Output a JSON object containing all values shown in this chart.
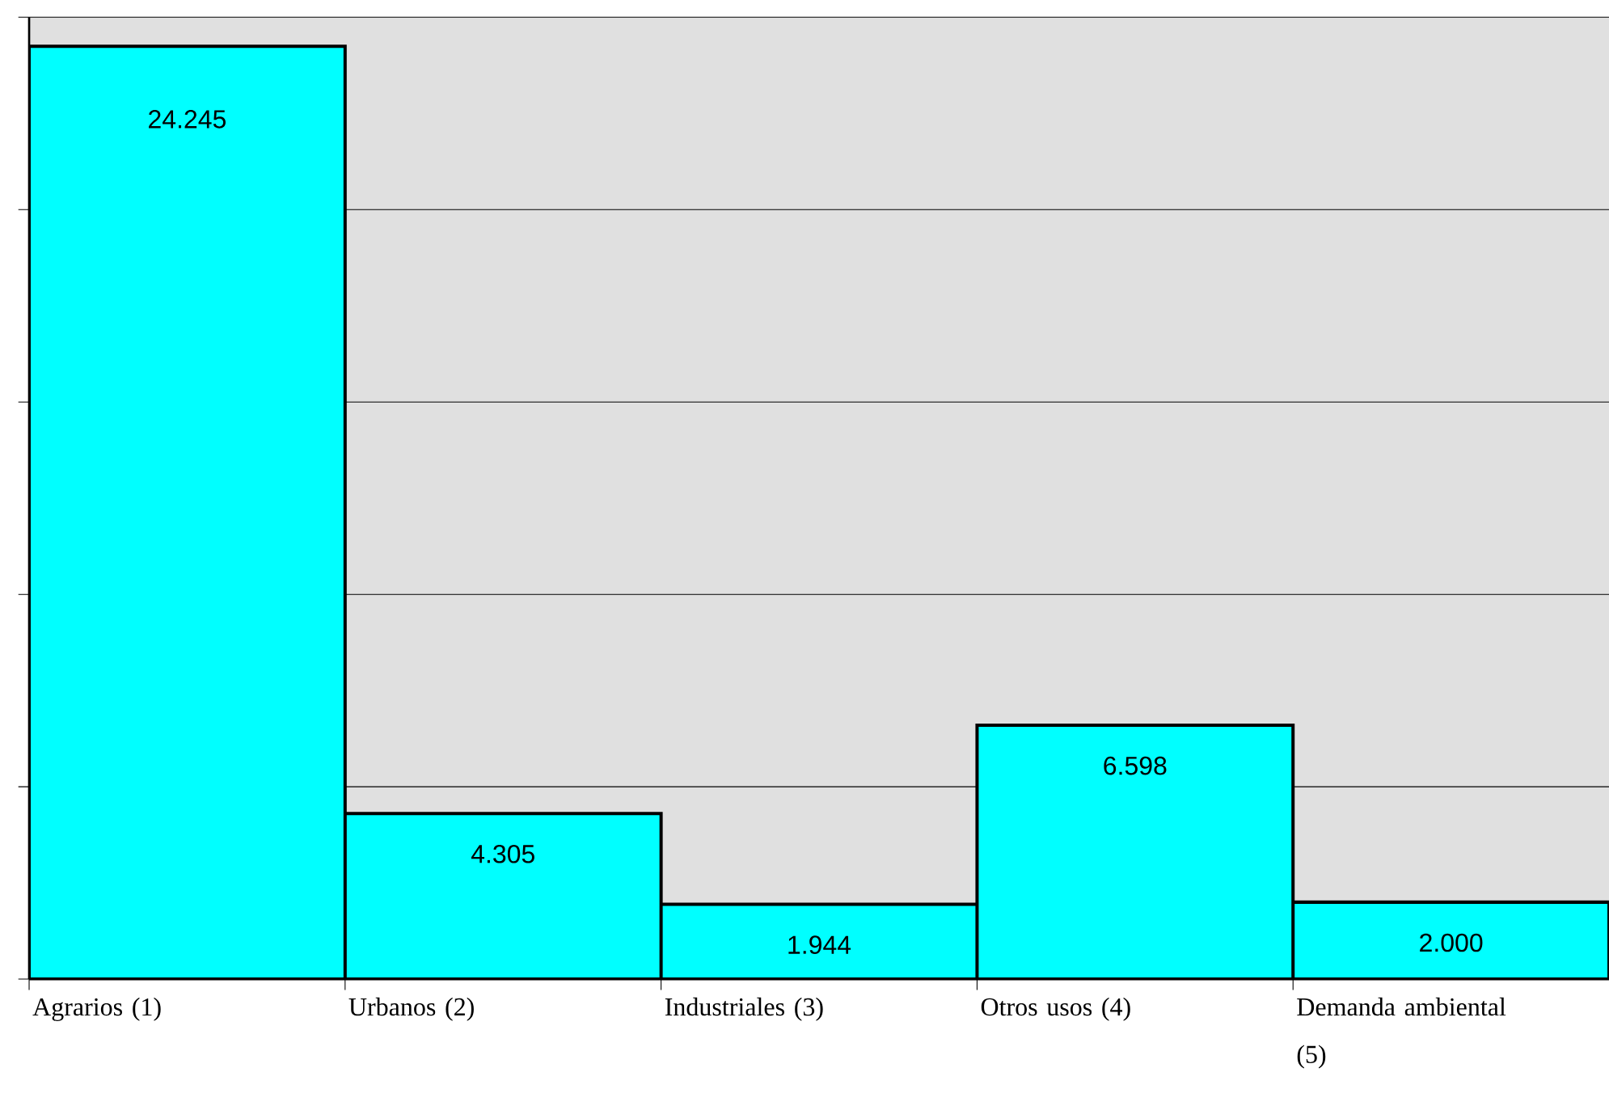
{
  "chart_data": {
    "type": "bar",
    "categories": [
      "Agrarios (1)",
      "Urbanos (2)",
      "Industriales (3)",
      "Otros usos (4)",
      "Demanda ambiental (5)"
    ],
    "values": [
      24245,
      4305,
      1944,
      6598,
      2000
    ],
    "value_labels": [
      "24.245",
      "4.305",
      "1.944",
      "6.598",
      "2.000"
    ],
    "color": "#00ffff",
    "ylim": [
      0,
      25000
    ],
    "yticks": [
      {
        "value": 0,
        "label": null
      },
      {
        "value": 5000,
        "label": null
      },
      {
        "value": 10000,
        "label": null
      },
      {
        "value": 15000,
        "label": null
      },
      {
        "value": 20000,
        "label": null
      },
      {
        "value": 25000,
        "label": null
      }
    ],
    "grid": "y",
    "tick_labels": "x"
  }
}
